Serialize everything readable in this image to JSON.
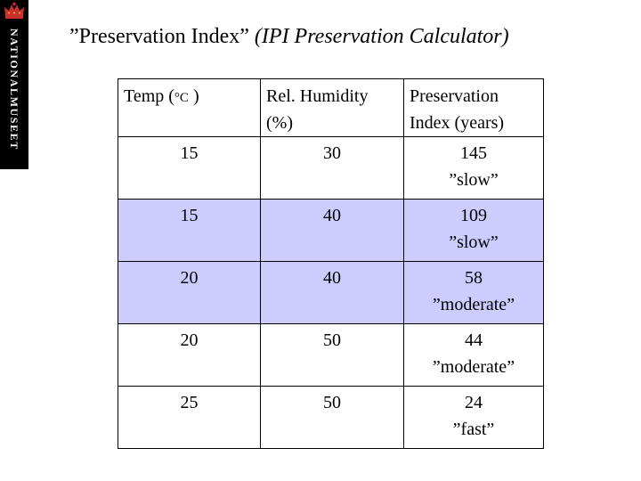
{
  "brand": {
    "name": "NATIONALMUSEET",
    "crown_icon": "crown-icon",
    "crown_color": "#c8312b",
    "strip_color": "#000000"
  },
  "title": {
    "main": "”Preservation Index”",
    "sub": "(IPI Preservation Calculator)"
  },
  "table": {
    "headers": {
      "temp_prefix": "Temp (",
      "temp_unit": "°C",
      "temp_suffix": " )",
      "humidity": "Rel. Humidity (%)",
      "preservation": "Preservation Index (years)"
    },
    "highlight_color": "#ccccff",
    "rows": [
      {
        "temp": "15",
        "humidity": "30",
        "index": "145",
        "rating": "”slow”",
        "highlighted": false
      },
      {
        "temp": "15",
        "humidity": "40",
        "index": "109",
        "rating": "”slow”",
        "highlighted": true
      },
      {
        "temp": "20",
        "humidity": "40",
        "index": "58",
        "rating": "”moderate”",
        "highlighted": true
      },
      {
        "temp": "20",
        "humidity": "50",
        "index": "44",
        "rating": "”moderate”",
        "highlighted": false
      },
      {
        "temp": "25",
        "humidity": "50",
        "index": "24",
        "rating": "”fast”",
        "highlighted": false
      }
    ]
  }
}
